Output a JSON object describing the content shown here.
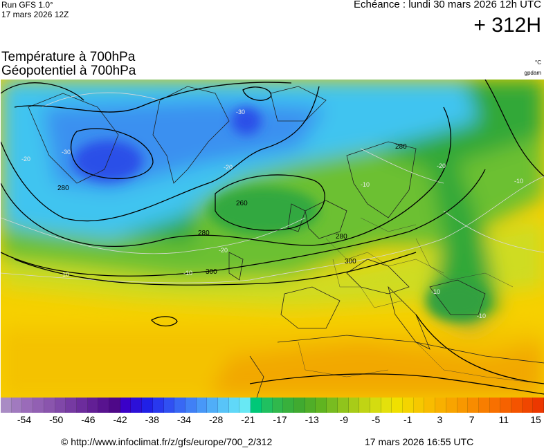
{
  "header": {
    "run": "Run GFS 1.0°",
    "init": "17 mars 2026 12Z",
    "validity": "Echéance : lundi 30 mars 2026 12h UTC",
    "lead": "+ 312H"
  },
  "params": {
    "line1": "Température à 700hPa",
    "line2": "Géopotentiel à 700hPa",
    "unit_temp": "°C",
    "unit_geo": "gpdam"
  },
  "map": {
    "contour_labels_geopotential": [
      "280",
      "280",
      "260",
      "280",
      "300",
      "300",
      "280"
    ],
    "contour_labels_temperature": [
      "-30",
      "-30",
      "-20",
      "-20",
      "-20",
      "-10",
      "-10",
      "-10",
      "-10",
      "-20",
      "-10",
      "-10"
    ]
  },
  "colorbar": {
    "colors": [
      "#a98bc4",
      "#a17abf",
      "#9a6bb9",
      "#9260b3",
      "#8a55ad",
      "#8048a8",
      "#763aa2",
      "#6c2c9c",
      "#621f95",
      "#58138f",
      "#4e0888",
      "#3a00c8",
      "#2c10d8",
      "#2020e6",
      "#2838ee",
      "#3050f2",
      "#3868f4",
      "#4080f6",
      "#4898f8",
      "#50aef8",
      "#58c4f8",
      "#60d8f8",
      "#68e8f4",
      "#00c878",
      "#20c060",
      "#30b84c",
      "#38b03c",
      "#40aa30",
      "#50ae28",
      "#60b420",
      "#78bc20",
      "#90c41c",
      "#a8cc18",
      "#c0d414",
      "#d4dc10",
      "#e4e00c",
      "#f0e000",
      "#f4d400",
      "#f6c800",
      "#f8bc00",
      "#f8b000",
      "#f8a400",
      "#f89800",
      "#f88c00",
      "#f87e00",
      "#f87000",
      "#f66200",
      "#f45400",
      "#f04600",
      "#ec3800"
    ],
    "tick_labels": [
      "-54",
      "-50",
      "-46",
      "-42",
      "-38",
      "-34",
      "-28",
      "-21",
      "-17",
      "-13",
      "-9",
      "-5",
      "-1",
      "3",
      "7",
      "11",
      "15"
    ]
  },
  "footer": {
    "url": "© http://www.infoclimat.fr/z/gfs/europe/700_2/312",
    "date": "17 mars 2026 16:55 UTC"
  }
}
